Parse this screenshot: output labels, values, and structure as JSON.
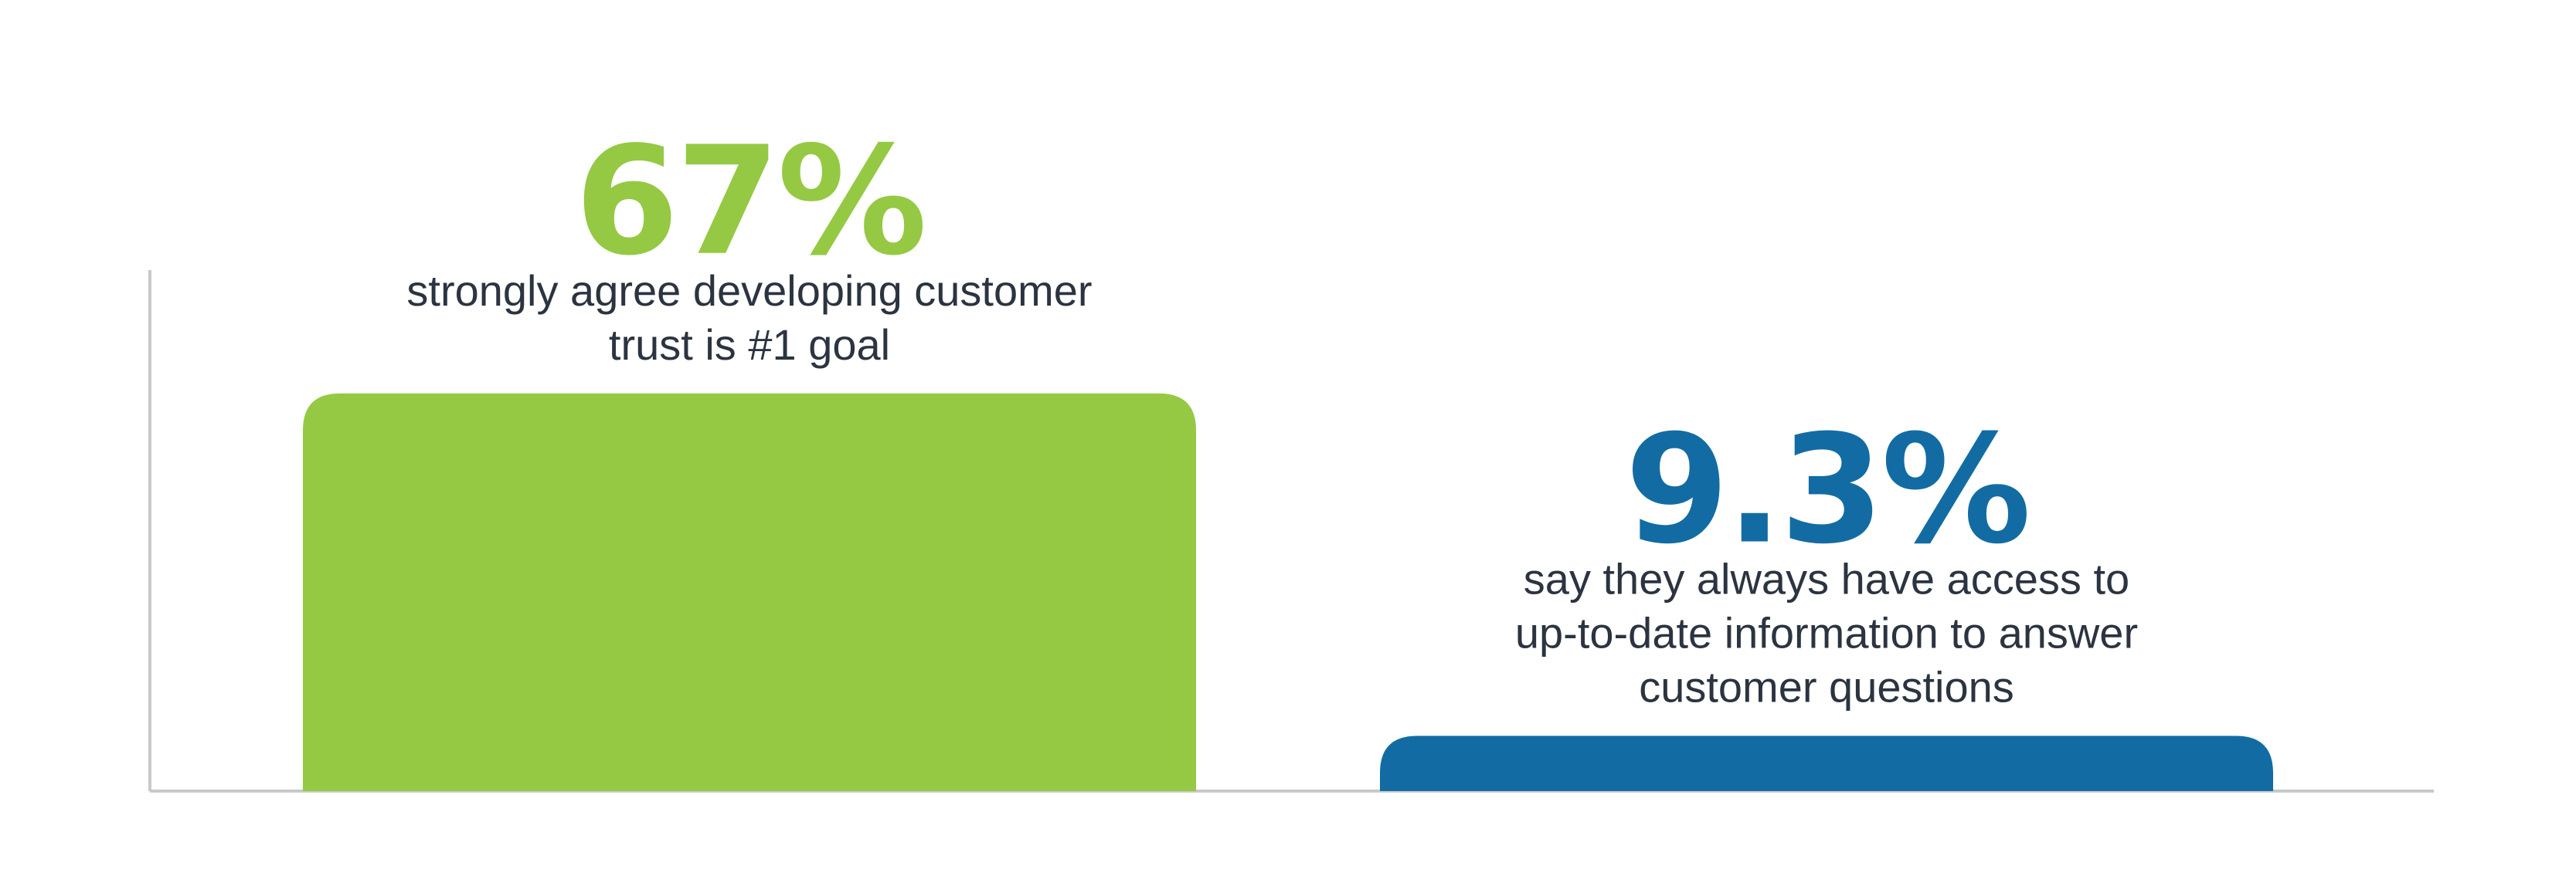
{
  "chart_data": {
    "type": "bar",
    "title": "",
    "xlabel": "",
    "ylabel": "",
    "ylim": [
      0,
      100
    ],
    "grid": false,
    "legend": "none",
    "categories": [
      "strongly agree developing customer trust is #1 goal",
      "say they always have access to up-to-date information to answer customer questions"
    ],
    "values": [
      67,
      9.3
    ],
    "value_labels": [
      "67%",
      "9.3%"
    ],
    "description_lines": [
      [
        "strongly agree developing customer",
        "trust is #1 goal"
      ],
      [
        "say they always have access to",
        "up-to-date information to answer",
        "customer questions"
      ]
    ],
    "colors": [
      "#95c943",
      "#126ca3"
    ],
    "axis_color": "#c8c8c8"
  }
}
